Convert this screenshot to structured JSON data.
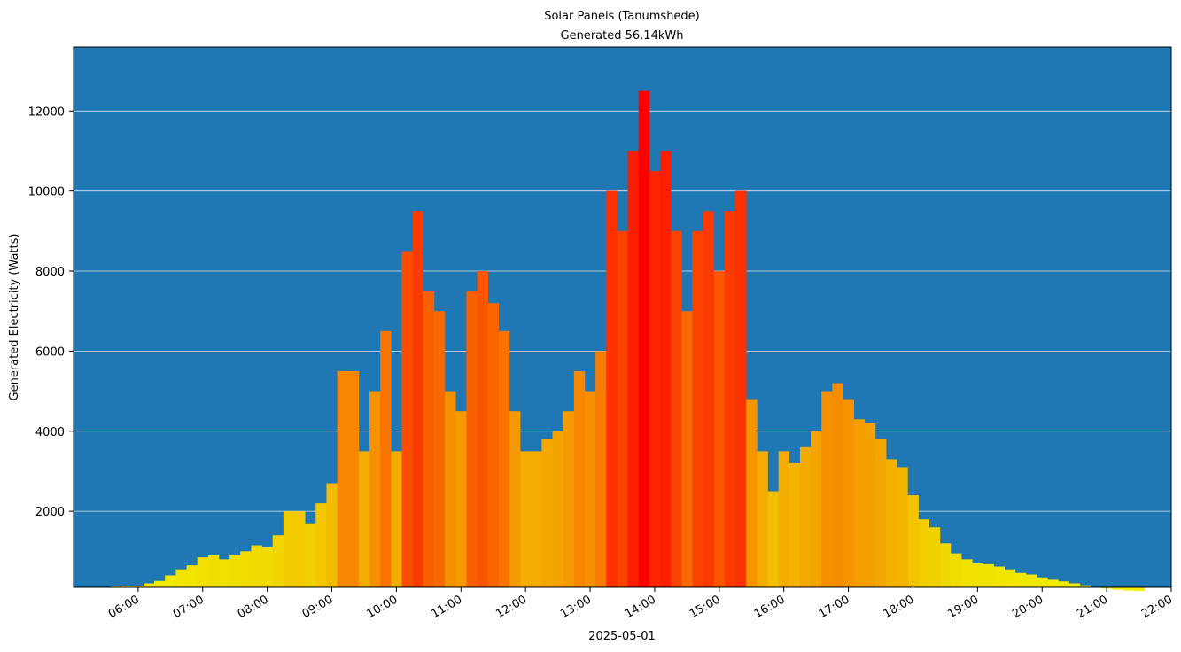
{
  "chart_data": {
    "type": "bar",
    "title": "Solar Panels (Tanumshede)",
    "subtitle": "Generated 56.14kWh",
    "ylabel": "Generated Electricity (Watts)",
    "xlabel": "2025-05-01",
    "x": [
      "05:30",
      "05:40",
      "05:50",
      "06:00",
      "06:10",
      "06:20",
      "06:30",
      "06:40",
      "06:50",
      "07:00",
      "07:10",
      "07:20",
      "07:30",
      "07:40",
      "07:50",
      "08:00",
      "08:10",
      "08:20",
      "08:30",
      "08:40",
      "08:50",
      "09:00",
      "09:10",
      "09:20",
      "09:30",
      "09:40",
      "09:50",
      "10:00",
      "10:10",
      "10:20",
      "10:30",
      "10:40",
      "10:50",
      "11:00",
      "11:10",
      "11:20",
      "11:30",
      "11:40",
      "11:50",
      "12:00",
      "12:10",
      "12:20",
      "12:30",
      "12:40",
      "12:50",
      "13:00",
      "13:10",
      "13:20",
      "13:30",
      "13:40",
      "13:50",
      "14:00",
      "14:10",
      "14:20",
      "14:30",
      "14:40",
      "14:50",
      "15:00",
      "15:10",
      "15:20",
      "15:30",
      "15:40",
      "15:50",
      "16:00",
      "16:10",
      "16:20",
      "16:30",
      "16:40",
      "16:50",
      "17:00",
      "17:10",
      "17:20",
      "17:30",
      "17:40",
      "17:50",
      "18:00",
      "18:10",
      "18:20",
      "18:30",
      "18:40",
      "18:50",
      "19:00",
      "19:10",
      "19:20",
      "19:30",
      "19:40",
      "19:50",
      "20:00",
      "20:10",
      "20:20",
      "20:30",
      "20:40",
      "20:50",
      "21:00",
      "21:10",
      "21:20",
      "21:30"
    ],
    "values": [
      100,
      120,
      130,
      140,
      200,
      260,
      400,
      550,
      650,
      850,
      900,
      800,
      900,
      1000,
      1150,
      1100,
      1400,
      2000,
      2000,
      1700,
      2200,
      2700,
      5500,
      5500,
      3500,
      5000,
      6500,
      3500,
      8500,
      9500,
      7500,
      7000,
      5000,
      4500,
      7500,
      8000,
      7200,
      6500,
      4500,
      3500,
      3500,
      3800,
      4000,
      4500,
      5500,
      5000,
      6000,
      10000,
      9000,
      11000,
      12500,
      10500,
      11000,
      9000,
      7000,
      9000,
      9500,
      8000,
      9500,
      10000,
      4800,
      3500,
      2500,
      3500,
      3200,
      3600,
      4000,
      5000,
      5200,
      4800,
      4300,
      4200,
      3800,
      3300,
      3100,
      2400,
      1800,
      1600,
      1200,
      950,
      800,
      700,
      680,
      620,
      550,
      460,
      420,
      350,
      290,
      250,
      200,
      150,
      110,
      70,
      40,
      20,
      10
    ],
    "colors": [
      "#f0f000",
      "#ff0000"
    ],
    "background": "#1f77b4",
    "xlim": [
      "05:00",
      "22:00"
    ],
    "xticks": [
      "06:00",
      "07:00",
      "08:00",
      "09:00",
      "10:00",
      "11:00",
      "12:00",
      "13:00",
      "14:00",
      "15:00",
      "16:00",
      "17:00",
      "18:00",
      "19:00",
      "20:00",
      "21:00",
      "22:00"
    ],
    "ylim": [
      100,
      13600
    ],
    "yticks": [
      2000,
      4000,
      6000,
      8000,
      10000,
      12000
    ],
    "grid": true
  }
}
